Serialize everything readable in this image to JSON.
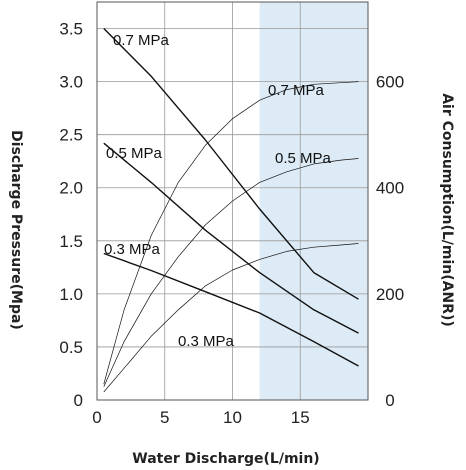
{
  "chart_data": {
    "type": "line",
    "title": "",
    "xlabel": "Water Discharge(L/min)",
    "ylabel_left": "Discharge Pressure(Mpa)",
    "ylabel_right": "Air Consumption(L/min(ANR))",
    "xlim": [
      0,
      20
    ],
    "ylim_left": [
      0,
      3.75
    ],
    "ylim_right": [
      0,
      750
    ],
    "x_ticks": [
      "0",
      "5",
      "10",
      "15"
    ],
    "y_left_ticks": [
      "0",
      "0.5",
      "1.0",
      "1.5",
      "2.0",
      "2.5",
      "3.0",
      "3.5"
    ],
    "y_right_ticks": [
      "0",
      "200",
      "400",
      "600"
    ],
    "grid": true,
    "highlight_band": {
      "x_from": 12,
      "x_to": 20,
      "color": "#dcebf6"
    },
    "series": [
      {
        "name": "0.7 MPa",
        "axis": "left",
        "style": "thick",
        "x": [
          0.5,
          4,
          8,
          12,
          16,
          19.3
        ],
        "y": [
          3.5,
          3.05,
          2.45,
          1.8,
          1.2,
          0.95
        ]
      },
      {
        "name": "0.5 MPa",
        "axis": "left",
        "style": "thick",
        "x": [
          0.5,
          4,
          8,
          12,
          16,
          19.3
        ],
        "y": [
          2.42,
          2.05,
          1.6,
          1.2,
          0.85,
          0.63
        ]
      },
      {
        "name": "0.3 MPa",
        "axis": "left",
        "style": "thick",
        "x": [
          0.5,
          4,
          8,
          12,
          16,
          19.3
        ],
        "y": [
          1.38,
          1.22,
          1.02,
          0.82,
          0.55,
          0.32
        ]
      },
      {
        "name": "0.7 MPa",
        "axis": "right",
        "style": "thin",
        "x": [
          0.5,
          2,
          4,
          6,
          8,
          10,
          12,
          14,
          16,
          18,
          19.3
        ],
        "y": [
          30,
          170,
          310,
          410,
          480,
          530,
          565,
          585,
          595,
          598,
          600
        ]
      },
      {
        "name": "0.5 MPa",
        "axis": "right",
        "style": "thin",
        "x": [
          0.5,
          2,
          4,
          6,
          8,
          10,
          12,
          14,
          16,
          18,
          19.3
        ],
        "y": [
          25,
          110,
          200,
          270,
          330,
          375,
          410,
          430,
          445,
          452,
          455
        ]
      },
      {
        "name": "0.3 MPa",
        "axis": "right",
        "style": "thin",
        "x": [
          0.5,
          2,
          4,
          6,
          8,
          10,
          12,
          14,
          16,
          18,
          19.3
        ],
        "y": [
          15,
          60,
          120,
          170,
          215,
          245,
          265,
          280,
          288,
          292,
          295
        ]
      }
    ]
  }
}
